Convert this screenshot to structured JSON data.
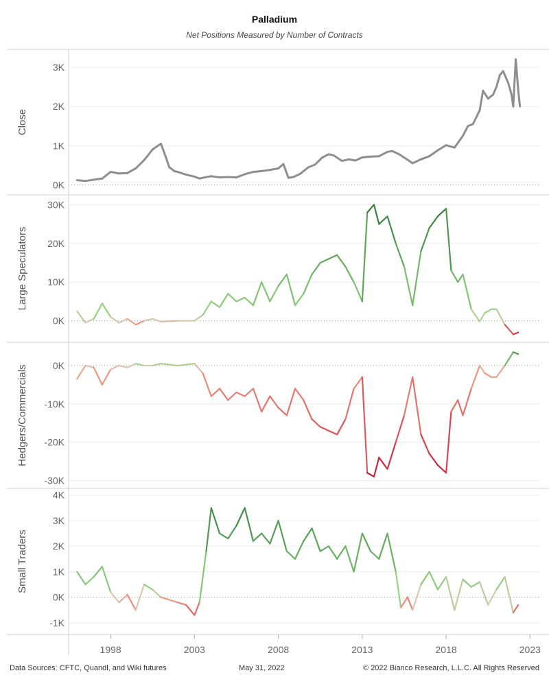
{
  "chart_data": {
    "type": "line",
    "title": "Palladium",
    "subtitle": "Net Positions Measured by Number of Contracts",
    "x_axis": {
      "tick_labels": [
        "1998",
        "2003",
        "2008",
        "2013",
        "2018",
        "2023"
      ],
      "range": [
        1995.5,
        2023.6
      ]
    },
    "panels": [
      {
        "ylabel": "Close",
        "ylim": [
          -150,
          3350
        ],
        "yticks": [
          0,
          1000,
          2000,
          3000
        ],
        "ytick_labels": [
          "0K",
          "1K",
          "2K",
          "3K"
        ],
        "color_mode": "gray",
        "series": {
          "x": [
            1996.0,
            1996.5,
            1997.0,
            1997.5,
            1998.0,
            1998.5,
            1999.0,
            1999.5,
            2000.0,
            2000.5,
            2001.0,
            2001.3,
            2001.5,
            2001.8,
            2002.0,
            2002.5,
            2003.0,
            2003.3,
            2003.6,
            2004.0,
            2004.5,
            2005.0,
            2005.5,
            2006.0,
            2006.5,
            2007.0,
            2007.5,
            2008.0,
            2008.3,
            2008.6,
            2008.9,
            2009.3,
            2009.8,
            2010.2,
            2010.6,
            2011.0,
            2011.3,
            2011.8,
            2012.2,
            2012.6,
            2013.0,
            2013.5,
            2014.0,
            2014.5,
            2014.8,
            2015.2,
            2015.7,
            2016.0,
            2016.5,
            2017.0,
            2017.5,
            2018.0,
            2018.5,
            2019.0,
            2019.3,
            2019.6,
            2020.0,
            2020.2,
            2020.5,
            2020.8,
            2021.0,
            2021.2,
            2021.4,
            2021.7,
            2021.9,
            2022.0,
            2022.15,
            2022.3,
            2022.4
          ],
          "values": [
            120,
            100,
            130,
            160,
            330,
            290,
            300,
            420,
            630,
            900,
            1050,
            700,
            450,
            350,
            330,
            260,
            210,
            160,
            190,
            220,
            190,
            200,
            190,
            270,
            330,
            350,
            380,
            420,
            530,
            180,
            200,
            280,
            450,
            520,
            690,
            780,
            750,
            610,
            650,
            620,
            700,
            720,
            730,
            840,
            860,
            780,
            640,
            550,
            650,
            730,
            880,
            1010,
            950,
            1250,
            1500,
            1550,
            1900,
            2400,
            2200,
            2300,
            2500,
            2800,
            2900,
            2600,
            2300,
            2000,
            3200,
            2400,
            2000
          ]
        }
      },
      {
        "ylabel": "Large Speculators",
        "ylim": [
          -4500,
          31500
        ],
        "yticks": [
          0,
          10000,
          20000,
          30000
        ],
        "ytick_labels": [
          "0K",
          "10K",
          "20K",
          "30K"
        ],
        "color_mode": "green-positive",
        "series": {
          "x": [
            1996.0,
            1996.5,
            1997.0,
            1997.5,
            1998.0,
            1998.5,
            1999.0,
            1999.5,
            2000.0,
            2000.5,
            2001.0,
            2002.0,
            2003.0,
            2003.5,
            2004.0,
            2004.5,
            2005.0,
            2005.5,
            2006.0,
            2006.5,
            2007.0,
            2007.5,
            2008.0,
            2008.5,
            2009.0,
            2009.5,
            2010.0,
            2010.5,
            2011.0,
            2011.5,
            2012.0,
            2012.5,
            2013.0,
            2013.3,
            2013.7,
            2014.0,
            2014.5,
            2015.0,
            2015.5,
            2016.0,
            2016.5,
            2017.0,
            2017.5,
            2018.0,
            2018.3,
            2018.7,
            2019.0,
            2019.5,
            2020.0,
            2020.3,
            2020.7,
            2021.0,
            2021.5,
            2022.0,
            2022.3
          ],
          "values": [
            2500,
            -500,
            500,
            4500,
            1000,
            -500,
            500,
            -1000,
            0,
            500,
            -200,
            0,
            0,
            1500,
            5000,
            3500,
            7000,
            5000,
            6000,
            4000,
            10000,
            5000,
            9000,
            12000,
            4000,
            7000,
            12000,
            15000,
            16000,
            17000,
            14000,
            10000,
            5000,
            28000,
            30000,
            25000,
            27000,
            20000,
            14000,
            4000,
            18000,
            24000,
            27000,
            29000,
            13000,
            10000,
            12000,
            3000,
            -200,
            2000,
            3000,
            3000,
            -1000,
            -3500,
            -3000
          ]
        }
      },
      {
        "ylabel": "Hedgers/Commercials",
        "ylim": [
          -31000,
          5000
        ],
        "yticks": [
          0,
          -10000,
          -20000,
          -30000
        ],
        "ytick_labels": [
          "0K",
          "-10K",
          "-20K",
          "-30K"
        ],
        "color_mode": "red-negative",
        "series": {
          "x": [
            1996.0,
            1996.5,
            1997.0,
            1997.5,
            1998.0,
            1998.5,
            1999.0,
            1999.5,
            2000.0,
            2000.5,
            2001.0,
            2002.0,
            2003.0,
            2003.5,
            2004.0,
            2004.5,
            2005.0,
            2005.5,
            2006.0,
            2006.5,
            2007.0,
            2007.5,
            2008.0,
            2008.5,
            2009.0,
            2009.5,
            2010.0,
            2010.5,
            2011.0,
            2011.5,
            2012.0,
            2012.5,
            2013.0,
            2013.3,
            2013.7,
            2014.0,
            2014.5,
            2015.0,
            2015.5,
            2016.0,
            2016.5,
            2017.0,
            2017.5,
            2018.0,
            2018.3,
            2018.7,
            2019.0,
            2019.5,
            2020.0,
            2020.3,
            2020.7,
            2021.0,
            2021.5,
            2022.0,
            2022.3
          ],
          "values": [
            -3500,
            0,
            -500,
            -5000,
            -1000,
            0,
            -500,
            500,
            0,
            0,
            500,
            0,
            500,
            -2000,
            -8000,
            -6000,
            -9000,
            -7000,
            -8000,
            -6000,
            -12000,
            -8000,
            -11000,
            -13000,
            -6000,
            -9000,
            -14000,
            -16000,
            -17000,
            -18000,
            -14000,
            -6000,
            -3000,
            -28000,
            -29000,
            -24000,
            -27000,
            -20000,
            -13000,
            -3000,
            -18000,
            -23000,
            -26000,
            -28000,
            -12000,
            -9000,
            -13000,
            -6000,
            0,
            -2000,
            -3000,
            -3000,
            0,
            3500,
            3000
          ]
        }
      },
      {
        "ylabel": "Small Traders",
        "ylim": [
          -1300,
          4100
        ],
        "yticks": [
          -1000,
          0,
          1000,
          2000,
          3000,
          4000
        ],
        "ytick_labels": [
          "-1K",
          "0K",
          "1K",
          "2K",
          "3K",
          "4K"
        ],
        "color_mode": "green-positive",
        "series": {
          "x": [
            1996.0,
            1996.5,
            1997.0,
            1997.5,
            1998.0,
            1998.5,
            1999.0,
            1999.5,
            2000.0,
            2000.5,
            2001.0,
            2002.0,
            2002.5,
            2003.0,
            2003.3,
            2003.7,
            2004.0,
            2004.5,
            2005.0,
            2005.5,
            2006.0,
            2006.5,
            2007.0,
            2007.5,
            2008.0,
            2008.5,
            2009.0,
            2009.5,
            2010.0,
            2010.5,
            2011.0,
            2011.5,
            2012.0,
            2012.5,
            2013.0,
            2013.5,
            2014.0,
            2014.5,
            2015.0,
            2015.3,
            2015.7,
            2016.0,
            2016.5,
            2017.0,
            2017.5,
            2018.0,
            2018.5,
            2019.0,
            2019.5,
            2020.0,
            2020.5,
            2021.0,
            2021.5,
            2022.0,
            2022.3
          ],
          "values": [
            1000,
            500,
            800,
            1200,
            200,
            -200,
            100,
            -500,
            500,
            300,
            0,
            -200,
            -300,
            -700,
            -200,
            1800,
            3500,
            2500,
            2300,
            2800,
            3500,
            2200,
            2500,
            2100,
            3000,
            1800,
            1500,
            2200,
            2700,
            1800,
            2000,
            1500,
            2000,
            1000,
            2500,
            1800,
            1500,
            2500,
            1000,
            -400,
            0,
            -500,
            500,
            1000,
            300,
            800,
            -500,
            700,
            400,
            600,
            -300,
            300,
            800,
            -600,
            -300
          ]
        }
      }
    ]
  },
  "footer": {
    "sources": "Data Sources: CFTC, Quandl, and Wiki futures",
    "date": "May 31, 2022",
    "copyright": "© 2022 Bianco Research, L.L.C. All Rights Reserved"
  }
}
